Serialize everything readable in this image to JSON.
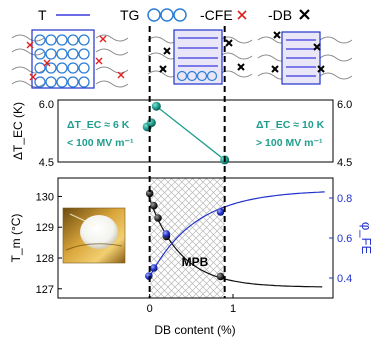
{
  "legend": {
    "items": [
      {
        "label": "T",
        "symbol": "line",
        "color": "#3a3ae0"
      },
      {
        "label": "TG",
        "symbol": "circles",
        "color": "#2e7fd6"
      },
      {
        "label": "-CFE",
        "symbol": "x",
        "color": "#e02020"
      },
      {
        "label": "-DB",
        "symbol": "x",
        "color": "#000000"
      }
    ]
  },
  "colors": {
    "teal": "#1f9e8e",
    "blue": "#2233cc",
    "black": "#111111",
    "red": "#e02020",
    "hatch": "#b8b8b8",
    "chain": "#8a8a8a"
  },
  "icons": {
    "chain_schematics": [
      "polymer-chain-schematic",
      "polymer-chain-schematic",
      "polymer-chain-schematic"
    ],
    "inset": "film-sample-photo"
  },
  "chart_data": [
    {
      "type": "scatter",
      "ylabel": "ΔT_EC (K)",
      "ylim": [
        4.5,
        6.0
      ],
      "yticks": [
        "4.5",
        "6.0"
      ],
      "right_yticks": [
        "4.5",
        "6.0"
      ],
      "annotations": [
        {
          "line1": "ΔT_EC ≈ 6 K",
          "line2": "< 100 MV m⁻¹"
        },
        {
          "line1": "ΔT_EC ≈ 10 K",
          "line2": "> 100 MV m⁻¹"
        }
      ],
      "series": [
        {
          "x": [
            -0.03,
            0.02,
            0.08,
            0.9
          ],
          "y": [
            5.35,
            5.45,
            5.85,
            4.55
          ]
        }
      ]
    },
    {
      "type": "scatter",
      "xlabel": "DB content (%)",
      "ylabel": "T_m (°C)",
      "y2label": "φ_FE",
      "xlim": [
        -1.1,
        2.2
      ],
      "ylim": [
        126.7,
        130.6
      ],
      "y2lim": [
        0.3,
        0.9
      ],
      "xticks": [
        0,
        1
      ],
      "xticklabels": [
        "0",
        "1"
      ],
      "yticks": [
        127,
        128,
        129,
        130
      ],
      "yticklabels": [
        "127",
        "128",
        "129",
        "130"
      ],
      "y2ticks": [
        0.4,
        0.6,
        0.8
      ],
      "y2ticklabels": [
        "0.4",
        "0.6",
        "0.8"
      ],
      "region_label": "MPB",
      "region": [
        0,
        0.9
      ],
      "series": [
        {
          "color": "#111111",
          "axis": "left",
          "x": [
            0,
            0.05,
            0.1,
            0.2,
            0.85
          ],
          "y": [
            130.1,
            129.7,
            129.3,
            128.7,
            127.4
          ]
        },
        {
          "color": "#2233cc",
          "axis": "right",
          "x": [
            -0.01,
            0.05,
            0.2,
            0.85
          ],
          "y": [
            0.41,
            0.45,
            0.62,
            0.73
          ]
        }
      ]
    }
  ]
}
